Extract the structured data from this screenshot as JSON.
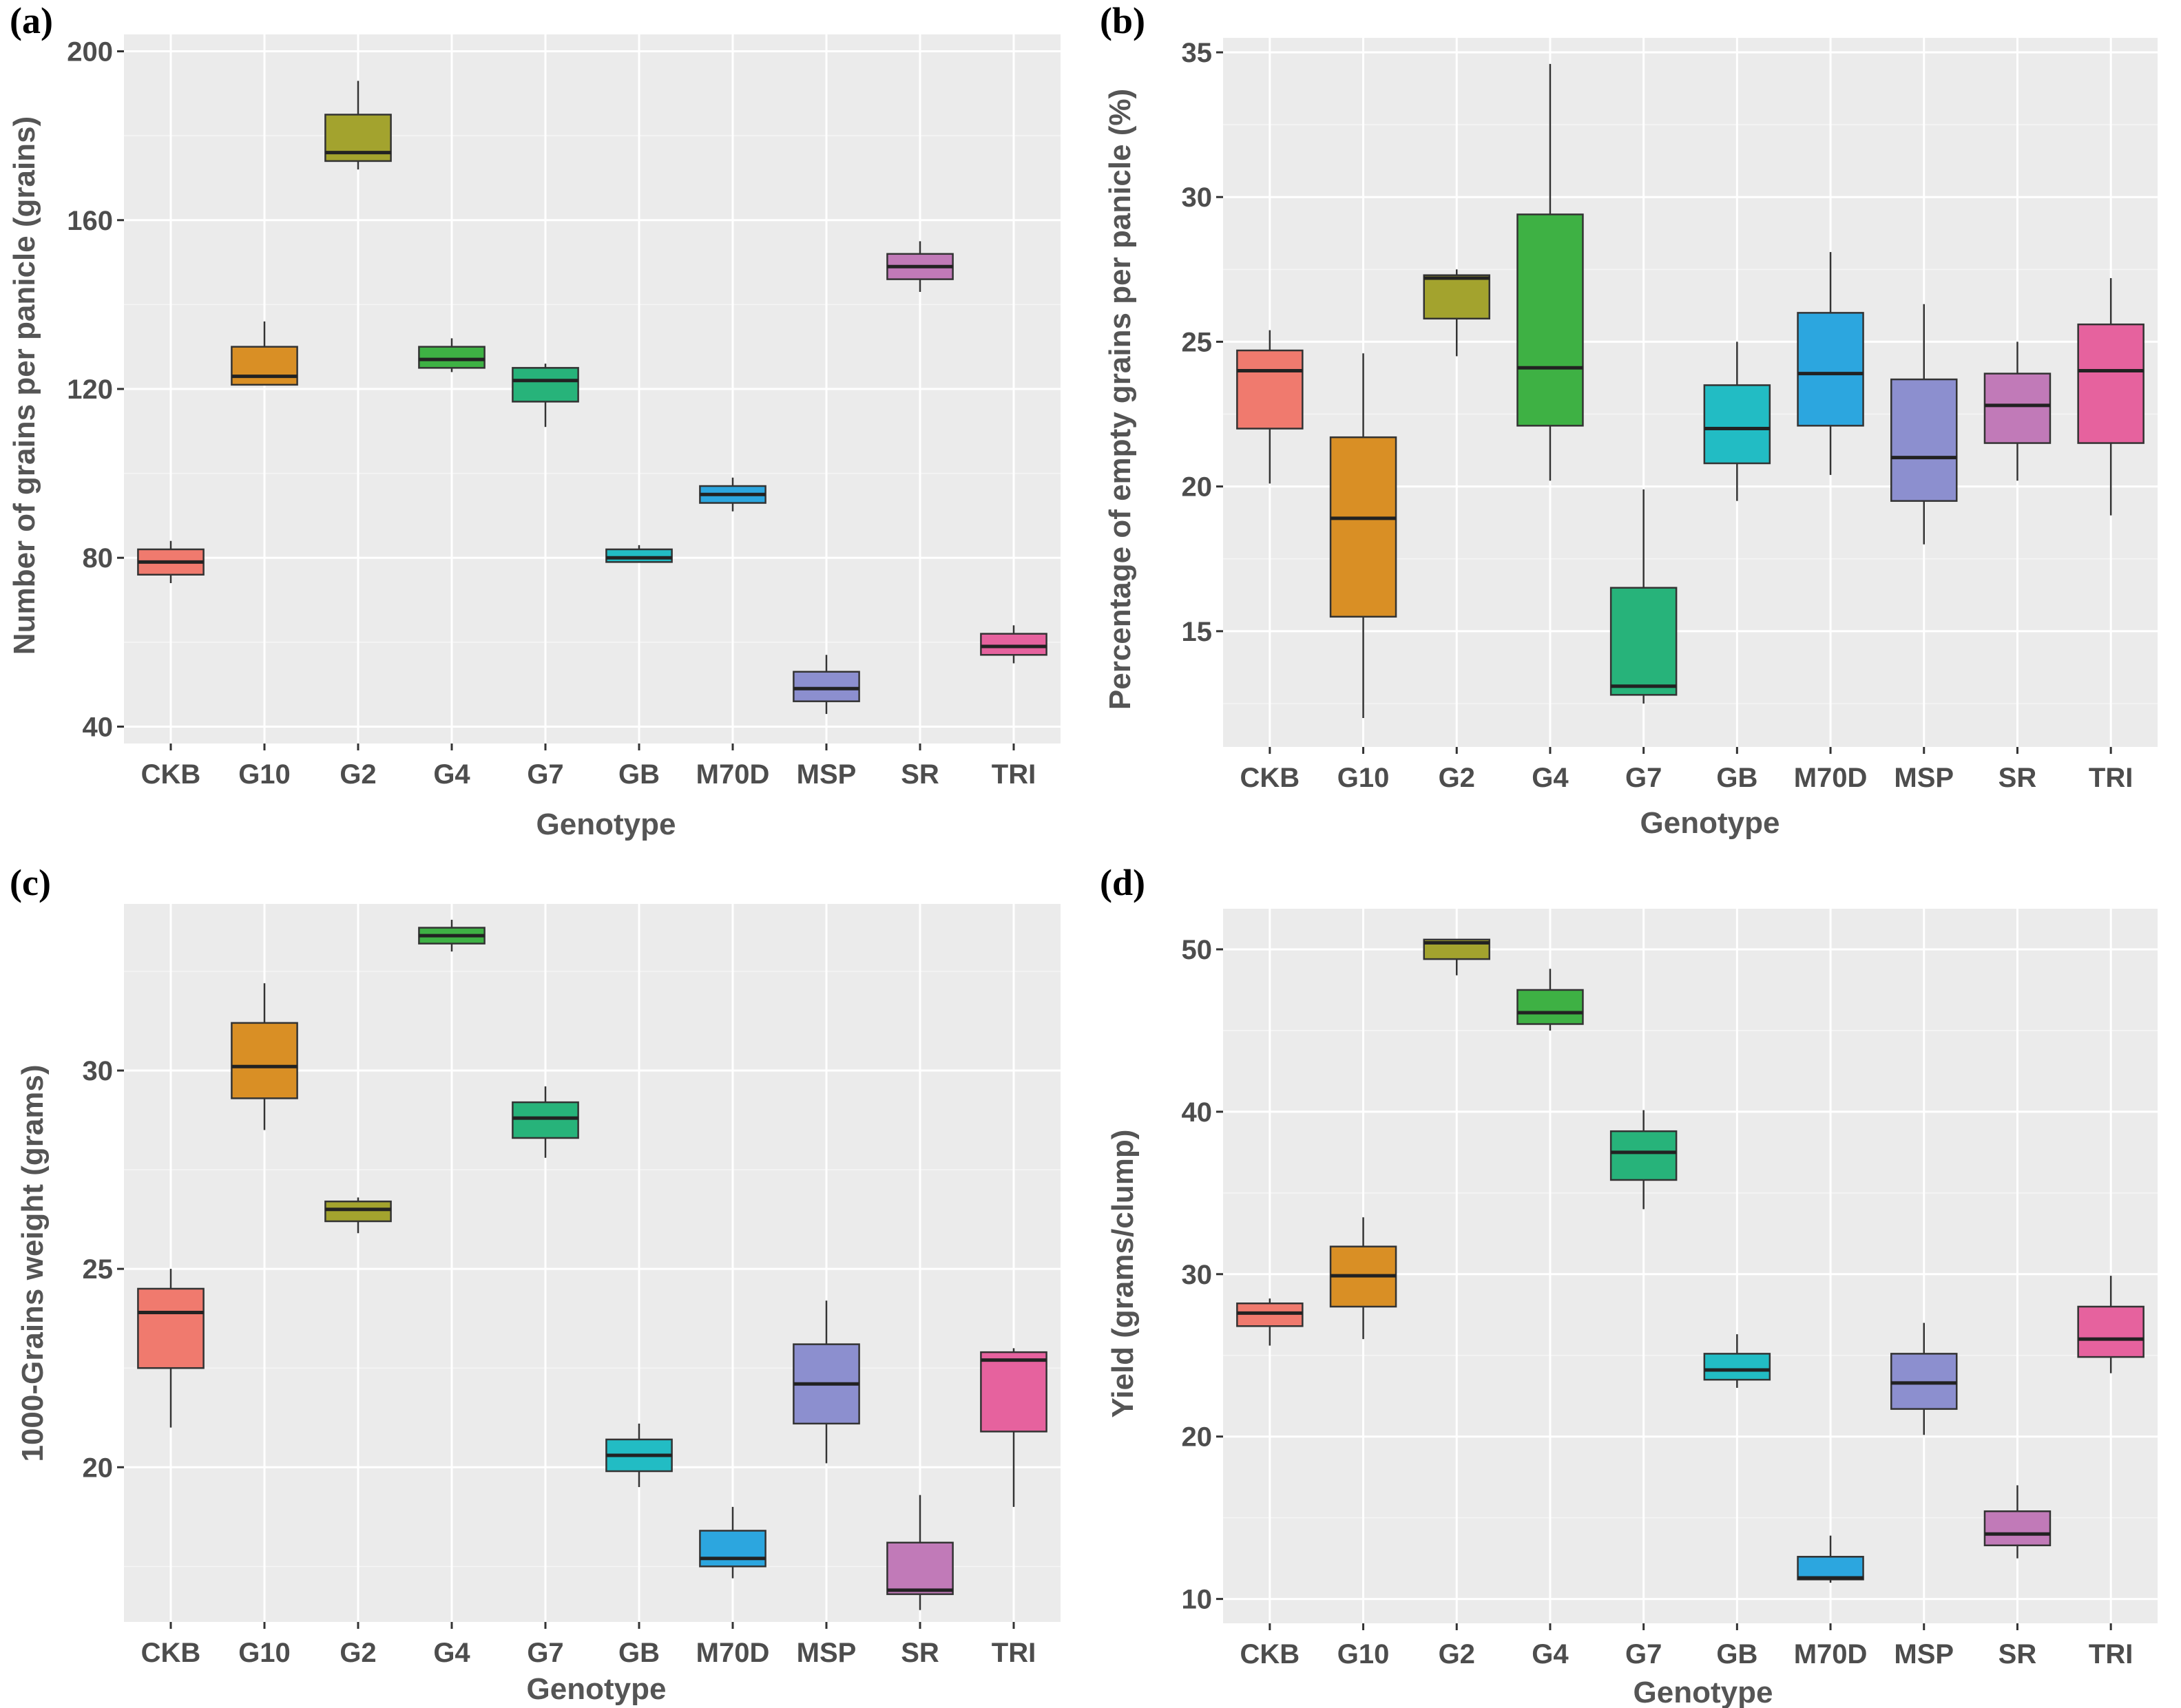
{
  "genotype_colors": {
    "CKB": "#f07a6e",
    "G10": "#d98f25",
    "G2": "#a3a32e",
    "G4": "#3eb144",
    "G7": "#27b37a",
    "GB": "#22bcc4",
    "M70D": "#2ca6df",
    "MSP": "#8c8fcf",
    "SR": "#c17ab8",
    "TRI": "#e6629e"
  },
  "chart_data": [
    {
      "panel_label": "(a)",
      "type": "boxplot",
      "xlabel": "Genotype",
      "ylabel": "Number of grains per panicle (grains)",
      "ylim": [
        36,
        204
      ],
      "yticks": [
        40,
        80,
        120,
        160,
        200
      ],
      "categories": [
        "CKB",
        "G10",
        "G2",
        "G4",
        "G7",
        "GB",
        "M70D",
        "MSP",
        "SR",
        "TRI"
      ],
      "boxes": [
        {
          "name": "CKB",
          "min": 74,
          "q1": 76,
          "median": 79,
          "q3": 82,
          "max": 84
        },
        {
          "name": "G10",
          "min": 121,
          "q1": 121,
          "median": 123,
          "q3": 130,
          "max": 136
        },
        {
          "name": "G2",
          "min": 172,
          "q1": 174,
          "median": 176,
          "q3": 185,
          "max": 193
        },
        {
          "name": "G4",
          "min": 124,
          "q1": 125,
          "median": 127,
          "q3": 130,
          "max": 132
        },
        {
          "name": "G7",
          "min": 111,
          "q1": 117,
          "median": 122,
          "q3": 125,
          "max": 126
        },
        {
          "name": "GB",
          "min": 79,
          "q1": 79,
          "median": 80,
          "q3": 82,
          "max": 83
        },
        {
          "name": "M70D",
          "min": 91,
          "q1": 93,
          "median": 95,
          "q3": 97,
          "max": 99
        },
        {
          "name": "MSP",
          "min": 43,
          "q1": 46,
          "median": 49,
          "q3": 53,
          "max": 57
        },
        {
          "name": "SR",
          "min": 143,
          "q1": 146,
          "median": 149,
          "q3": 152,
          "max": 155
        },
        {
          "name": "TRI",
          "min": 55,
          "q1": 57,
          "median": 59,
          "q3": 62,
          "max": 64
        }
      ]
    },
    {
      "panel_label": "(b)",
      "type": "boxplot",
      "xlabel": "Genotype",
      "ylabel": "Percentage of empty grains per panicle (%)",
      "ylim": [
        11,
        35.5
      ],
      "yticks": [
        15,
        20,
        25,
        30,
        35
      ],
      "categories": [
        "CKB",
        "G10",
        "G2",
        "G4",
        "G7",
        "GB",
        "M70D",
        "MSP",
        "SR",
        "TRI"
      ],
      "boxes": [
        {
          "name": "CKB",
          "min": 20.1,
          "q1": 22.0,
          "median": 24.0,
          "q3": 24.7,
          "max": 25.4
        },
        {
          "name": "G10",
          "min": 12.0,
          "q1": 15.5,
          "median": 18.9,
          "q3": 21.7,
          "max": 24.6
        },
        {
          "name": "G2",
          "min": 24.5,
          "q1": 25.8,
          "median": 27.2,
          "q3": 27.3,
          "max": 27.5
        },
        {
          "name": "G4",
          "min": 20.2,
          "q1": 22.1,
          "median": 24.1,
          "q3": 29.4,
          "max": 34.6
        },
        {
          "name": "G7",
          "min": 12.5,
          "q1": 12.8,
          "median": 13.1,
          "q3": 16.5,
          "max": 19.9
        },
        {
          "name": "GB",
          "min": 19.5,
          "q1": 20.8,
          "median": 22.0,
          "q3": 23.5,
          "max": 25.0
        },
        {
          "name": "M70D",
          "min": 20.4,
          "q1": 22.1,
          "median": 23.9,
          "q3": 26.0,
          "max": 28.1
        },
        {
          "name": "MSP",
          "min": 18.0,
          "q1": 19.5,
          "median": 21.0,
          "q3": 23.7,
          "max": 26.3
        },
        {
          "name": "SR",
          "min": 20.2,
          "q1": 21.5,
          "median": 22.8,
          "q3": 23.9,
          "max": 25.0
        },
        {
          "name": "TRI",
          "min": 19.0,
          "q1": 21.5,
          "median": 24.0,
          "q3": 25.6,
          "max": 27.2
        }
      ]
    },
    {
      "panel_label": "(c)",
      "type": "boxplot",
      "xlabel": "Genotype",
      "ylabel": "1000-Grains weight (grams)",
      "ylim": [
        16.1,
        34.2
      ],
      "yticks": [
        20,
        25,
        30
      ],
      "categories": [
        "CKB",
        "G10",
        "G2",
        "G4",
        "G7",
        "GB",
        "M70D",
        "MSP",
        "SR",
        "TRI"
      ],
      "boxes": [
        {
          "name": "CKB",
          "min": 21.0,
          "q1": 22.5,
          "median": 23.9,
          "q3": 24.5,
          "max": 25.0
        },
        {
          "name": "G10",
          "min": 28.5,
          "q1": 29.3,
          "median": 30.1,
          "q3": 31.2,
          "max": 32.2
        },
        {
          "name": "G2",
          "min": 25.9,
          "q1": 26.2,
          "median": 26.5,
          "q3": 26.7,
          "max": 26.8
        },
        {
          "name": "G4",
          "min": 33.0,
          "q1": 33.2,
          "median": 33.4,
          "q3": 33.6,
          "max": 33.8
        },
        {
          "name": "G7",
          "min": 27.8,
          "q1": 28.3,
          "median": 28.8,
          "q3": 29.2,
          "max": 29.6
        },
        {
          "name": "GB",
          "min": 19.5,
          "q1": 19.9,
          "median": 20.3,
          "q3": 20.7,
          "max": 21.1
        },
        {
          "name": "M70D",
          "min": 17.2,
          "q1": 17.5,
          "median": 17.7,
          "q3": 18.4,
          "max": 19.0
        },
        {
          "name": "MSP",
          "min": 20.1,
          "q1": 21.1,
          "median": 22.1,
          "q3": 23.1,
          "max": 24.2
        },
        {
          "name": "SR",
          "min": 16.4,
          "q1": 16.8,
          "median": 16.9,
          "q3": 18.1,
          "max": 19.3
        },
        {
          "name": "TRI",
          "min": 19.0,
          "q1": 20.9,
          "median": 22.7,
          "q3": 22.9,
          "max": 23.0
        }
      ]
    },
    {
      "panel_label": "(d)",
      "type": "boxplot",
      "xlabel": "Genotype",
      "ylabel": "Yield (grams/clump)",
      "ylim": [
        8.5,
        52.5
      ],
      "yticks": [
        10,
        20,
        30,
        40,
        50
      ],
      "categories": [
        "CKB",
        "G10",
        "G2",
        "G4",
        "G7",
        "GB",
        "M70D",
        "MSP",
        "SR",
        "TRI"
      ],
      "boxes": [
        {
          "name": "CKB",
          "min": 25.6,
          "q1": 26.8,
          "median": 27.6,
          "q3": 28.2,
          "max": 28.5
        },
        {
          "name": "G10",
          "min": 26.0,
          "q1": 28.0,
          "median": 29.9,
          "q3": 31.7,
          "max": 33.5
        },
        {
          "name": "G2",
          "min": 48.4,
          "q1": 49.4,
          "median": 50.4,
          "q3": 50.6,
          "max": 50.6
        },
        {
          "name": "G4",
          "min": 45.0,
          "q1": 45.4,
          "median": 46.1,
          "q3": 47.5,
          "max": 48.8
        },
        {
          "name": "G7",
          "min": 34.0,
          "q1": 35.8,
          "median": 37.5,
          "q3": 38.8,
          "max": 40.1
        },
        {
          "name": "GB",
          "min": 23.0,
          "q1": 23.5,
          "median": 24.1,
          "q3": 25.1,
          "max": 26.3
        },
        {
          "name": "M70D",
          "min": 11.0,
          "q1": 11.2,
          "median": 11.3,
          "q3": 12.6,
          "max": 13.9
        },
        {
          "name": "MSP",
          "min": 20.1,
          "q1": 21.7,
          "median": 23.3,
          "q3": 25.1,
          "max": 27.0
        },
        {
          "name": "SR",
          "min": 12.5,
          "q1": 13.3,
          "median": 14.0,
          "q3": 15.4,
          "max": 17.0
        },
        {
          "name": "TRI",
          "min": 23.9,
          "q1": 24.9,
          "median": 26.0,
          "q3": 28.0,
          "max": 29.9
        }
      ]
    }
  ]
}
